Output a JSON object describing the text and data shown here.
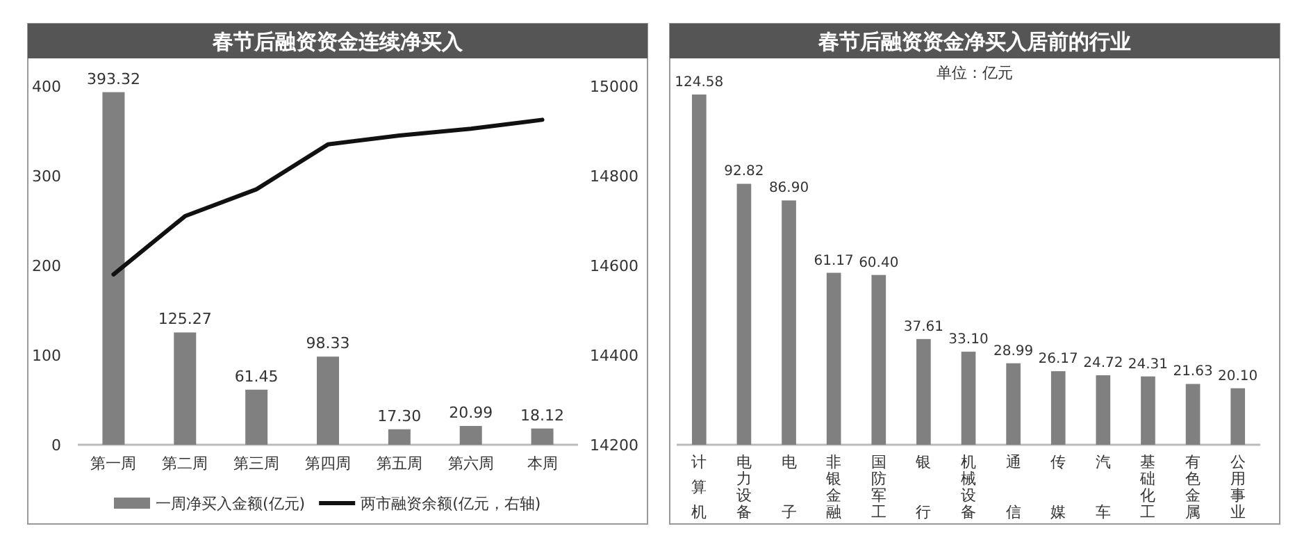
{
  "chart_data": [
    {
      "type": "bar",
      "title": "春节后融资资金连续净买入",
      "categories": [
        "第一周",
        "第二周",
        "第三周",
        "第四周",
        "第五周",
        "第六周",
        "本周"
      ],
      "series": [
        {
          "name": "一周净买入金额(亿元)",
          "color": "#808080",
          "values": [
            393.32,
            125.27,
            61.45,
            98.33,
            17.3,
            20.99,
            18.12
          ],
          "value_labels": [
            "393.32",
            "125.27",
            "61.45",
            "98.33",
            "17.30",
            "20.99",
            "18.12"
          ]
        },
        {
          "name": "两市融资余额(亿元，右轴)",
          "type": "line",
          "axis": "y2",
          "color": "#111111",
          "values": [
            14580,
            14710,
            14770,
            14870,
            14890,
            14905,
            14925
          ]
        }
      ],
      "ylim": [
        0,
        400
      ],
      "yticks": [
        0,
        100,
        200,
        300,
        400
      ],
      "y2lim": [
        14200,
        15000
      ],
      "y2ticks": [
        14200,
        14400,
        14600,
        14800,
        15000
      ],
      "legend": "bottom",
      "grid": false,
      "marker": "none"
    },
    {
      "type": "bar",
      "title": "春节后融资资金净买入居前的行业",
      "annotations": [
        "单位：亿元"
      ],
      "categories": [
        "计算机",
        "电力设备",
        "电子",
        "非银金融",
        "国防军工",
        "银行",
        "机械设备",
        "通信",
        "传媒",
        "汽车",
        "基础化工",
        "有色金属",
        "公用事业"
      ],
      "values": [
        124.58,
        92.82,
        86.9,
        61.17,
        60.4,
        37.61,
        33.1,
        28.99,
        26.17,
        24.72,
        24.31,
        21.63,
        20.1
      ],
      "value_labels": [
        "124.58",
        "92.82",
        "86.90",
        "61.17",
        "60.40",
        "37.61",
        "33.10",
        "28.99",
        "26.17",
        "24.72",
        "24.31",
        "21.63",
        "20.10"
      ],
      "color": "#808080",
      "grid": false,
      "legend": false
    }
  ]
}
